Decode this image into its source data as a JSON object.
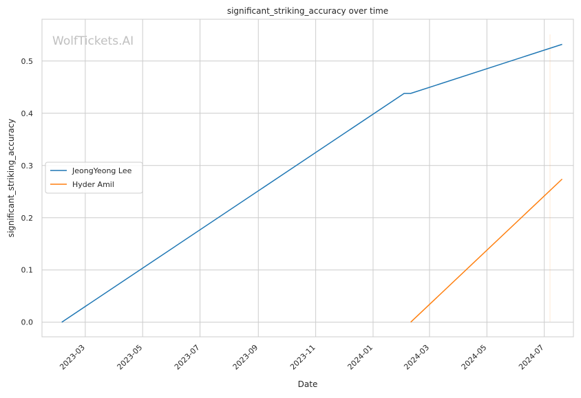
{
  "watermark": "WolfTickets.AI",
  "chart_data": {
    "type": "line",
    "title": "significant_striking_accuracy over time",
    "xlabel": "Date",
    "ylabel": "significant_striking_accuracy",
    "x_axis_type": "date",
    "xlim": [
      "2023-01-14",
      "2024-08-01"
    ],
    "ylim": [
      -0.028,
      0.58
    ],
    "x_ticks": [
      "2023-03",
      "2023-05",
      "2023-07",
      "2023-09",
      "2023-11",
      "2024-01",
      "2024-03",
      "2024-05",
      "2024-07"
    ],
    "y_ticks": [
      0.0,
      0.1,
      0.2,
      0.3,
      0.4,
      0.5
    ],
    "y_tick_labels": [
      "0.0",
      "0.1",
      "0.2",
      "0.3",
      "0.4",
      "0.5"
    ],
    "grid": true,
    "legend_position": "center-left",
    "series": [
      {
        "name": "JeongYeong Lee",
        "color": "#1f77b4",
        "points": [
          {
            "x": "2023-02-04",
            "y": 0.0
          },
          {
            "x": "2024-02-03",
            "y": 0.438
          },
          {
            "x": "2024-02-10",
            "y": 0.438
          },
          {
            "x": "2024-07-20",
            "y": 0.532
          }
        ]
      },
      {
        "name": "Hyder Amil",
        "color": "#ff7f0e",
        "points": [
          {
            "x": "2024-02-10",
            "y": 0.0
          },
          {
            "x": "2024-07-20",
            "y": 0.274
          }
        ]
      }
    ]
  }
}
